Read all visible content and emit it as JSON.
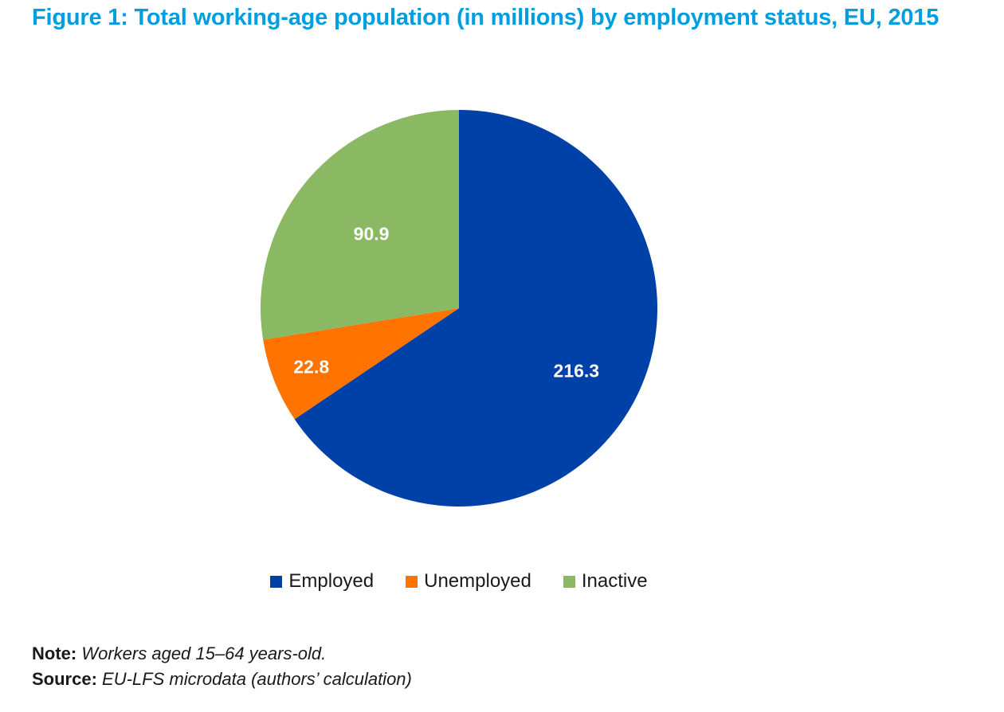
{
  "chart_data": {
    "type": "pie",
    "title": "Figure 1: Total working-age population (in millions) by employment status, EU, 2015",
    "categories": [
      "Employed",
      "Unemployed",
      "Inactive"
    ],
    "values": [
      216.3,
      22.8,
      90.9
    ],
    "value_labels": [
      "216.3",
      "22.8",
      "90.9"
    ],
    "colors": [
      "#0041a8",
      "#ff7300",
      "#8bb863"
    ],
    "start_angle": "12 o'clock",
    "direction": "clockwise",
    "legend_position": "bottom"
  },
  "notes": {
    "note_label": "Note:",
    "note_text": "Workers aged 15–64 years-old.",
    "source_label": "Source:",
    "source_text": "EU-LFS microdata (authors’ calculation)"
  }
}
